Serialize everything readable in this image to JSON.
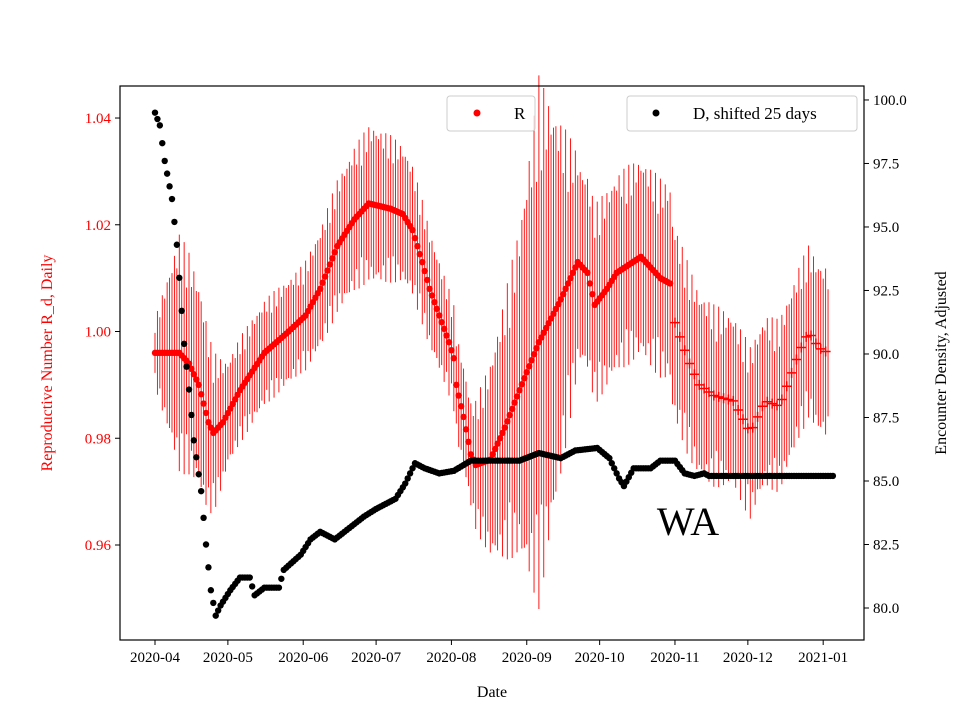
{
  "chart_data": {
    "type": "scatter",
    "title": "",
    "annotation": "WA",
    "xlabel": "Date",
    "ylabel_left": "Reproductive Number R_d, Daily",
    "ylabel_right": "Encounter Density, Adjusted",
    "x_origin_date": "2020-04-01",
    "x_units": "days since 2020-04-01",
    "xlim": [
      -14.4,
      291.8
    ],
    "ylim_left": [
      0.9422,
      1.046
    ],
    "ylim_right": [
      78.74,
      100.55
    ],
    "x_ticks": [
      {
        "day": 0,
        "label": "2020-04"
      },
      {
        "day": 30,
        "label": "2020-05"
      },
      {
        "day": 61,
        "label": "2020-06"
      },
      {
        "day": 91,
        "label": "2020-07"
      },
      {
        "day": 122,
        "label": "2020-08"
      },
      {
        "day": 153,
        "label": "2020-09"
      },
      {
        "day": 183,
        "label": "2020-10"
      },
      {
        "day": 214,
        "label": "2020-11"
      },
      {
        "day": 244,
        "label": "2020-12"
      },
      {
        "day": 275,
        "label": "2021-01"
      }
    ],
    "y_ticks_left": [
      {
        "value": 0.96,
        "label": "0.96"
      },
      {
        "value": 0.98,
        "label": "0.98"
      },
      {
        "value": 1.0,
        "label": "1.00"
      },
      {
        "value": 1.02,
        "label": "1.02"
      },
      {
        "value": 1.04,
        "label": "1.04"
      }
    ],
    "y_ticks_right": [
      {
        "value": 80,
        "label": "80.0"
      },
      {
        "value": 82.5,
        "label": "82.5"
      },
      {
        "value": 85,
        "label": "85.0"
      },
      {
        "value": 87.5,
        "label": "87.5"
      },
      {
        "value": 90,
        "label": "90.0"
      },
      {
        "value": 92.5,
        "label": "92.5"
      },
      {
        "value": 95,
        "label": "95.0"
      },
      {
        "value": 97.5,
        "label": "97.5"
      },
      {
        "value": 100,
        "label": "100.0"
      }
    ],
    "series": [
      {
        "name": "R",
        "axis": "left",
        "color": "#ff0000",
        "marker_switch_day": 213,
        "points": [
          [
            0,
            0.996
          ],
          [
            4,
            0.996
          ],
          [
            10,
            0.996
          ],
          [
            14,
            0.994
          ],
          [
            18,
            0.99
          ],
          [
            22,
            0.983
          ],
          [
            24,
            0.981
          ],
          [
            28,
            0.983
          ],
          [
            35,
            0.989
          ],
          [
            45,
            0.996
          ],
          [
            55,
            1.0
          ],
          [
            62,
            1.003
          ],
          [
            68,
            1.008
          ],
          [
            75,
            1.016
          ],
          [
            82,
            1.021
          ],
          [
            88,
            1.024
          ],
          [
            97,
            1.023
          ],
          [
            102,
            1.022
          ],
          [
            106,
            1.019
          ],
          [
            110,
            1.013
          ],
          [
            113,
            1.008
          ],
          [
            117,
            1.003
          ],
          [
            121,
            0.998
          ],
          [
            123,
            0.995
          ],
          [
            124,
            0.99
          ],
          [
            127,
            0.984
          ],
          [
            130,
            0.977
          ],
          [
            132,
            0.975
          ],
          [
            138,
            0.976
          ],
          [
            144,
            0.982
          ],
          [
            150,
            0.989
          ],
          [
            158,
            0.998
          ],
          [
            167,
            1.006
          ],
          [
            174,
            1.013
          ],
          [
            178,
            1.011
          ],
          [
            181,
            1.005
          ],
          [
            186,
            1.008
          ],
          [
            190,
            1.011
          ],
          [
            200,
            1.014
          ],
          [
            208,
            1.01
          ],
          [
            212,
            1.009
          ],
          [
            213,
            1.003
          ],
          [
            216,
            0.999
          ],
          [
            220,
            0.994
          ],
          [
            224,
            0.99
          ],
          [
            230,
            0.988
          ],
          [
            238,
            0.987
          ],
          [
            245,
            0.981
          ],
          [
            251,
            0.987
          ],
          [
            257,
            0.986
          ],
          [
            261,
            0.991
          ],
          [
            265,
            0.996
          ],
          [
            269,
            1.0
          ],
          [
            273,
            0.997
          ],
          [
            277,
            0.996
          ]
        ],
        "error_halfwidth": [
          [
            0,
            0.005
          ],
          [
            10,
            0.018
          ],
          [
            20,
            0.015
          ],
          [
            30,
            0.008
          ],
          [
            60,
            0.008
          ],
          [
            90,
            0.012
          ],
          [
            120,
            0.008
          ],
          [
            130,
            0.008
          ],
          [
            150,
            0.025
          ],
          [
            158,
            0.04
          ],
          [
            165,
            0.03
          ],
          [
            175,
            0.015
          ],
          [
            212,
            0.015
          ],
          [
            240,
            0.013
          ],
          [
            277,
            0.013
          ]
        ]
      },
      {
        "name": "D, shifted 25 days",
        "axis": "right",
        "color": "#000000",
        "points": [
          [
            0,
            99.5
          ],
          [
            2,
            99.0
          ],
          [
            4,
            97.6
          ],
          [
            7,
            96.1
          ],
          [
            9,
            94.3
          ],
          [
            11,
            91.7
          ],
          [
            12,
            90.4
          ],
          [
            14,
            88.6
          ],
          [
            16,
            86.6
          ],
          [
            19,
            84.6
          ],
          [
            21,
            82.5
          ],
          [
            23,
            80.7
          ],
          [
            25,
            79.7
          ],
          [
            27,
            80.1
          ],
          [
            31,
            80.7
          ],
          [
            35,
            81.2
          ],
          [
            39,
            81.2
          ],
          [
            41,
            80.5
          ],
          [
            45,
            80.8
          ],
          [
            51,
            80.8
          ],
          [
            53,
            81.5
          ],
          [
            60,
            82.1
          ],
          [
            64,
            82.7
          ],
          [
            68,
            83.0
          ],
          [
            74,
            82.7
          ],
          [
            78,
            83.0
          ],
          [
            82,
            83.3
          ],
          [
            86,
            83.6
          ],
          [
            91,
            83.9
          ],
          [
            99,
            84.3
          ],
          [
            103,
            84.9
          ],
          [
            107,
            85.7
          ],
          [
            111,
            85.5
          ],
          [
            117,
            85.3
          ],
          [
            123,
            85.4
          ],
          [
            130,
            85.8
          ],
          [
            150,
            85.8
          ],
          [
            158,
            86.1
          ],
          [
            167,
            85.9
          ],
          [
            173,
            86.2
          ],
          [
            182,
            86.3
          ],
          [
            187,
            85.9
          ],
          [
            191,
            85.1
          ],
          [
            193,
            84.8
          ],
          [
            197,
            85.5
          ],
          [
            204,
            85.5
          ],
          [
            208,
            85.8
          ],
          [
            214,
            85.8
          ],
          [
            218,
            85.3
          ],
          [
            222,
            85.2
          ],
          [
            226,
            85.3
          ],
          [
            228,
            85.2
          ],
          [
            279,
            85.2
          ]
        ]
      }
    ],
    "legends": [
      {
        "label": "R",
        "placement": "top-center"
      },
      {
        "label": "D, shifted 25 days",
        "placement": "top-right"
      }
    ]
  }
}
